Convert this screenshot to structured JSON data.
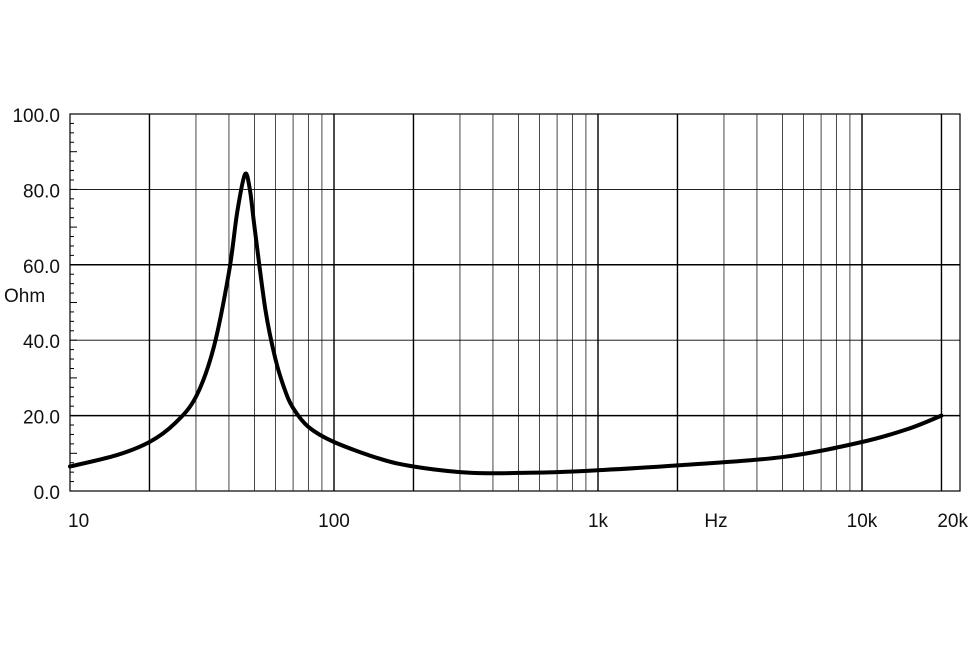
{
  "chart_data": {
    "type": "line",
    "title": "",
    "xlabel": "Hz",
    "ylabel": "Ohm",
    "x_scale": "log",
    "xlim": [
      10,
      20000
    ],
    "ylim": [
      0,
      100
    ],
    "grid": true,
    "x_tick_labels": [
      {
        "value": 10,
        "label": "10"
      },
      {
        "value": 100,
        "label": "100"
      },
      {
        "value": 1000,
        "label": "1k"
      },
      {
        "value": 10000,
        "label": "10k"
      },
      {
        "value": 20000,
        "label": "20k"
      }
    ],
    "y_tick_labels": [
      {
        "value": 0,
        "label": "0.0"
      },
      {
        "value": 20,
        "label": "20.0"
      },
      {
        "value": 40,
        "label": "40.0"
      },
      {
        "value": 60,
        "label": "60.0"
      },
      {
        "value": 80,
        "label": "80.0"
      },
      {
        "value": 100,
        "label": "100.0"
      }
    ],
    "series": [
      {
        "color": "#000000",
        "x": [
          10,
          15,
          20,
          25,
          30,
          35,
          40,
          43,
          46,
          48,
          50,
          55,
          60,
          65,
          70,
          80,
          100,
          150,
          200,
          300,
          400,
          500,
          700,
          1000,
          2000,
          5000,
          10000,
          15000,
          20000
        ],
        "y": [
          6.5,
          9.5,
          13,
          18,
          25,
          38,
          58,
          74,
          84,
          80,
          70,
          48,
          35,
          27,
          22,
          17,
          13,
          8.5,
          6.5,
          5,
          4.7,
          4.8,
          5,
          5.5,
          6.8,
          9,
          13,
          16.5,
          20
        ]
      }
    ]
  }
}
